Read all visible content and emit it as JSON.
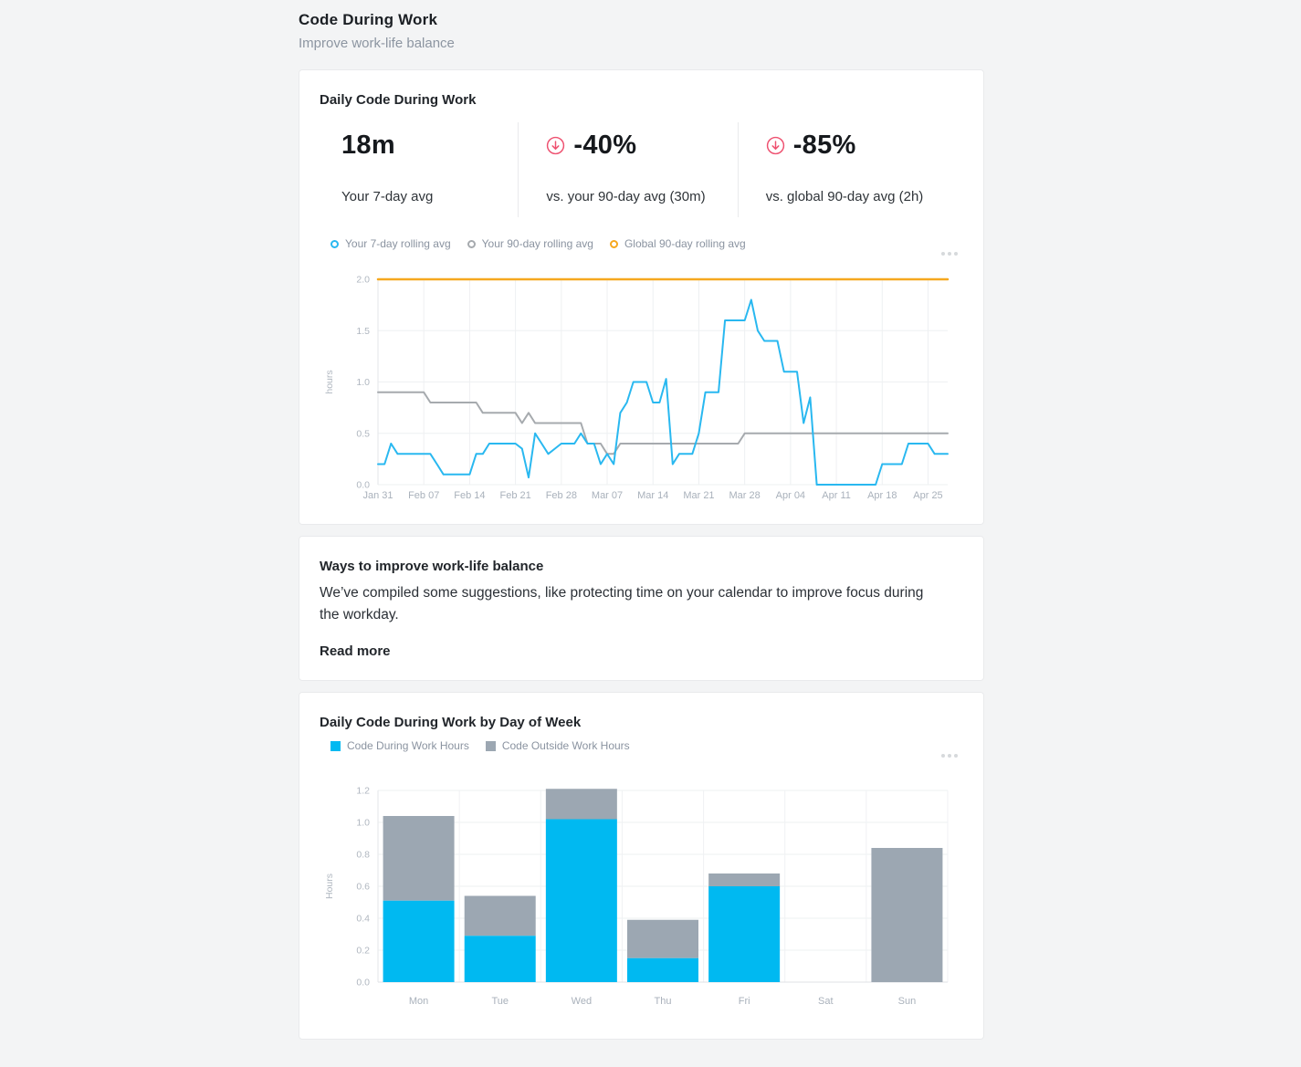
{
  "page": {
    "title": "Code During Work",
    "subtitle": "Improve work-life balance"
  },
  "icons": {
    "stat_trend": "circle-arrow-down-icon",
    "card_menu": "ellipsis-icon"
  },
  "colors": {
    "background": "#f3f4f5",
    "card_border": "#e9eaec",
    "blue_line": "#29b8f0",
    "gray_line": "#a6aaae",
    "orange_line": "#f6a81f",
    "blue_bar": "#00b9f1",
    "gray_bar": "#9ca7b2",
    "trend_red": "#ee5170",
    "tick_text": "#b0b7c0",
    "x_label_text": "#a9b1bb",
    "gridline": "#eef0f2",
    "axis_line": "#e3e6e9"
  },
  "daily_card": {
    "title": "Daily Code During Work",
    "stats": [
      {
        "value": "18m",
        "label": "Your 7-day avg",
        "icon": null
      },
      {
        "value": "-40%",
        "label": "vs. your 90-day avg (30m)",
        "icon": "circle-arrow-down-icon"
      },
      {
        "value": "-85%",
        "label": "vs. global 90-day avg (2h)",
        "icon": "circle-arrow-down-icon"
      }
    ]
  },
  "suggestion_card": {
    "title": "Ways to improve work-life balance",
    "body": "We’ve compiled some suggestions, like protecting time on your calendar to improve focus during the workday.",
    "link": "Read more"
  },
  "weekday_card": {
    "title": "Daily Code During Work by Day of Week"
  },
  "chart_data": [
    {
      "type": "line",
      "ylabel": "hours",
      "ylim": [
        0,
        2.0
      ],
      "yticks": [
        0.0,
        0.5,
        1.0,
        1.5,
        2.0
      ],
      "grid": true,
      "legend_position": "top-left",
      "x_tick_labels": [
        "Jan 31",
        "Feb 07",
        "Feb 14",
        "Feb 21",
        "Feb 28",
        "Mar 07",
        "Mar 14",
        "Mar 21",
        "Mar 28",
        "Apr 04",
        "Apr 11",
        "Apr 18",
        "Apr 25"
      ],
      "x_tick_step_days": 7,
      "dates": [
        "Jan 31",
        "Feb 01",
        "Feb 02",
        "Feb 03",
        "Feb 04",
        "Feb 05",
        "Feb 06",
        "Feb 07",
        "Feb 08",
        "Feb 09",
        "Feb 10",
        "Feb 11",
        "Feb 12",
        "Feb 13",
        "Feb 14",
        "Feb 15",
        "Feb 16",
        "Feb 17",
        "Feb 18",
        "Feb 19",
        "Feb 20",
        "Feb 21",
        "Feb 22",
        "Feb 23",
        "Feb 24",
        "Feb 25",
        "Feb 26",
        "Feb 27",
        "Feb 28",
        "Mar 01",
        "Mar 02",
        "Mar 03",
        "Mar 04",
        "Mar 05",
        "Mar 06",
        "Mar 07",
        "Mar 08",
        "Mar 09",
        "Mar 10",
        "Mar 11",
        "Mar 12",
        "Mar 13",
        "Mar 14",
        "Mar 15",
        "Mar 16",
        "Mar 17",
        "Mar 18",
        "Mar 19",
        "Mar 20",
        "Mar 21",
        "Mar 22",
        "Mar 23",
        "Mar 24",
        "Mar 25",
        "Mar 26",
        "Mar 27",
        "Mar 28",
        "Mar 29",
        "Mar 30",
        "Mar 31",
        "Apr 01",
        "Apr 02",
        "Apr 03",
        "Apr 04",
        "Apr 05",
        "Apr 06",
        "Apr 07",
        "Apr 08",
        "Apr 09",
        "Apr 10",
        "Apr 11",
        "Apr 12",
        "Apr 13",
        "Apr 14",
        "Apr 15",
        "Apr 16",
        "Apr 17",
        "Apr 18",
        "Apr 19",
        "Apr 20",
        "Apr 21",
        "Apr 22",
        "Apr 23",
        "Apr 24",
        "Apr 25",
        "Apr 26",
        "Apr 27",
        "Apr 28"
      ],
      "series": [
        {
          "name": "Your 7-day rolling avg",
          "color_key": "blue_line",
          "values": [
            0.2,
            0.2,
            0.4,
            0.3,
            0.3,
            0.3,
            0.3,
            0.3,
            0.3,
            0.2,
            0.1,
            0.1,
            0.1,
            0.1,
            0.1,
            0.3,
            0.3,
            0.4,
            0.4,
            0.4,
            0.4,
            0.4,
            0.35,
            0.07,
            0.5,
            0.4,
            0.3,
            0.35,
            0.4,
            0.4,
            0.4,
            0.5,
            0.4,
            0.4,
            0.2,
            0.3,
            0.2,
            0.7,
            0.8,
            1.0,
            1.0,
            1.0,
            0.8,
            0.8,
            1.03,
            0.2,
            0.3,
            0.3,
            0.3,
            0.5,
            0.9,
            0.9,
            0.9,
            1.6,
            1.6,
            1.6,
            1.6,
            1.8,
            1.5,
            1.4,
            1.4,
            1.4,
            1.1,
            1.1,
            1.1,
            0.6,
            0.85,
            0.0,
            0.0,
            0.0,
            0.0,
            0.0,
            0.0,
            0.0,
            0.0,
            0.0,
            0.0,
            0.2,
            0.2,
            0.2,
            0.2,
            0.4,
            0.4,
            0.4,
            0.4,
            0.3,
            0.3,
            0.3
          ]
        },
        {
          "name": "Your 90-day rolling avg",
          "color_key": "gray_line",
          "values": [
            0.9,
            0.9,
            0.9,
            0.9,
            0.9,
            0.9,
            0.9,
            0.9,
            0.8,
            0.8,
            0.8,
            0.8,
            0.8,
            0.8,
            0.8,
            0.8,
            0.7,
            0.7,
            0.7,
            0.7,
            0.7,
            0.7,
            0.6,
            0.7,
            0.6,
            0.6,
            0.6,
            0.6,
            0.6,
            0.6,
            0.6,
            0.6,
            0.4,
            0.4,
            0.4,
            0.3,
            0.3,
            0.4,
            0.4,
            0.4,
            0.4,
            0.4,
            0.4,
            0.4,
            0.4,
            0.4,
            0.4,
            0.4,
            0.4,
            0.4,
            0.4,
            0.4,
            0.4,
            0.4,
            0.4,
            0.4,
            0.5,
            0.5,
            0.5,
            0.5,
            0.5,
            0.5,
            0.5,
            0.5,
            0.5,
            0.5,
            0.5,
            0.5,
            0.5,
            0.5,
            0.5,
            0.5,
            0.5,
            0.5,
            0.5,
            0.5,
            0.5,
            0.5,
            0.5,
            0.5,
            0.5,
            0.5,
            0.5,
            0.5,
            0.5,
            0.5,
            0.5,
            0.5
          ]
        },
        {
          "name": "Global 90-day rolling avg",
          "color_key": "orange_line",
          "constant": 2.0
        }
      ]
    },
    {
      "type": "stacked_bar",
      "ylabel": "Hours",
      "ylim": [
        0,
        1.2
      ],
      "yticks": [
        0.0,
        0.2,
        0.4,
        0.6,
        0.8,
        1.0,
        1.2
      ],
      "grid": true,
      "legend_position": "top-left",
      "categories": [
        "Mon",
        "Tue",
        "Wed",
        "Thu",
        "Fri",
        "Sat",
        "Sun"
      ],
      "series": [
        {
          "name": "Code During Work Hours",
          "color_key": "blue_bar",
          "values": [
            0.51,
            0.29,
            1.02,
            0.15,
            0.6,
            0.0,
            0.0
          ]
        },
        {
          "name": "Code Outside Work Hours",
          "color_key": "gray_bar",
          "values": [
            0.53,
            0.25,
            0.19,
            0.24,
            0.08,
            0.0,
            0.84
          ]
        }
      ]
    }
  ]
}
